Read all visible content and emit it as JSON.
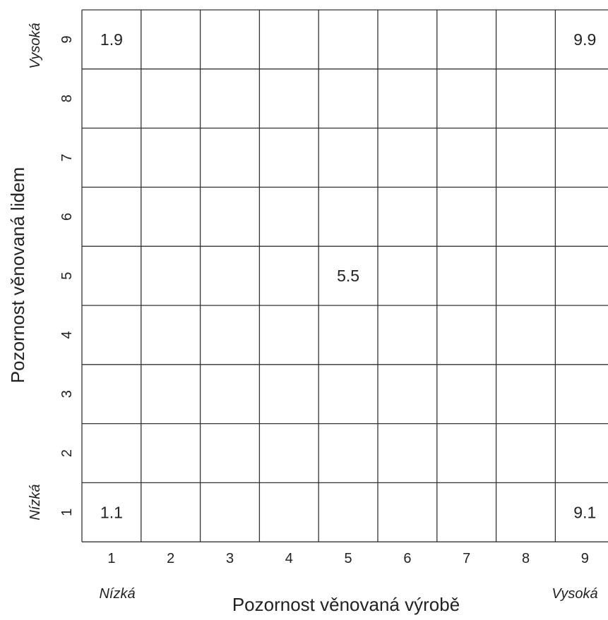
{
  "chart_data": {
    "type": "table",
    "x_axis": {
      "label": "Pozornost věnovaná výrobě",
      "ticks": [
        "1",
        "2",
        "3",
        "4",
        "5",
        "6",
        "7",
        "8",
        "9"
      ],
      "low_label": "Nízká",
      "high_label": "Vysoká"
    },
    "y_axis": {
      "label": "Pozornost věnovaná lidem",
      "ticks": [
        "1",
        "2",
        "3",
        "4",
        "5",
        "6",
        "7",
        "8",
        "9"
      ],
      "low_label": "Nízká",
      "high_label": "Vysoká"
    },
    "points": [
      {
        "x": 1,
        "y": 9,
        "label": "1.9"
      },
      {
        "x": 9,
        "y": 9,
        "label": "9.9"
      },
      {
        "x": 5,
        "y": 5,
        "label": "5.5"
      },
      {
        "x": 1,
        "y": 1,
        "label": "1.1"
      },
      {
        "x": 9,
        "y": 1,
        "label": "9.1"
      }
    ]
  },
  "colors": {
    "line": "#333333",
    "text": "#222222",
    "background": "#ffffff"
  }
}
